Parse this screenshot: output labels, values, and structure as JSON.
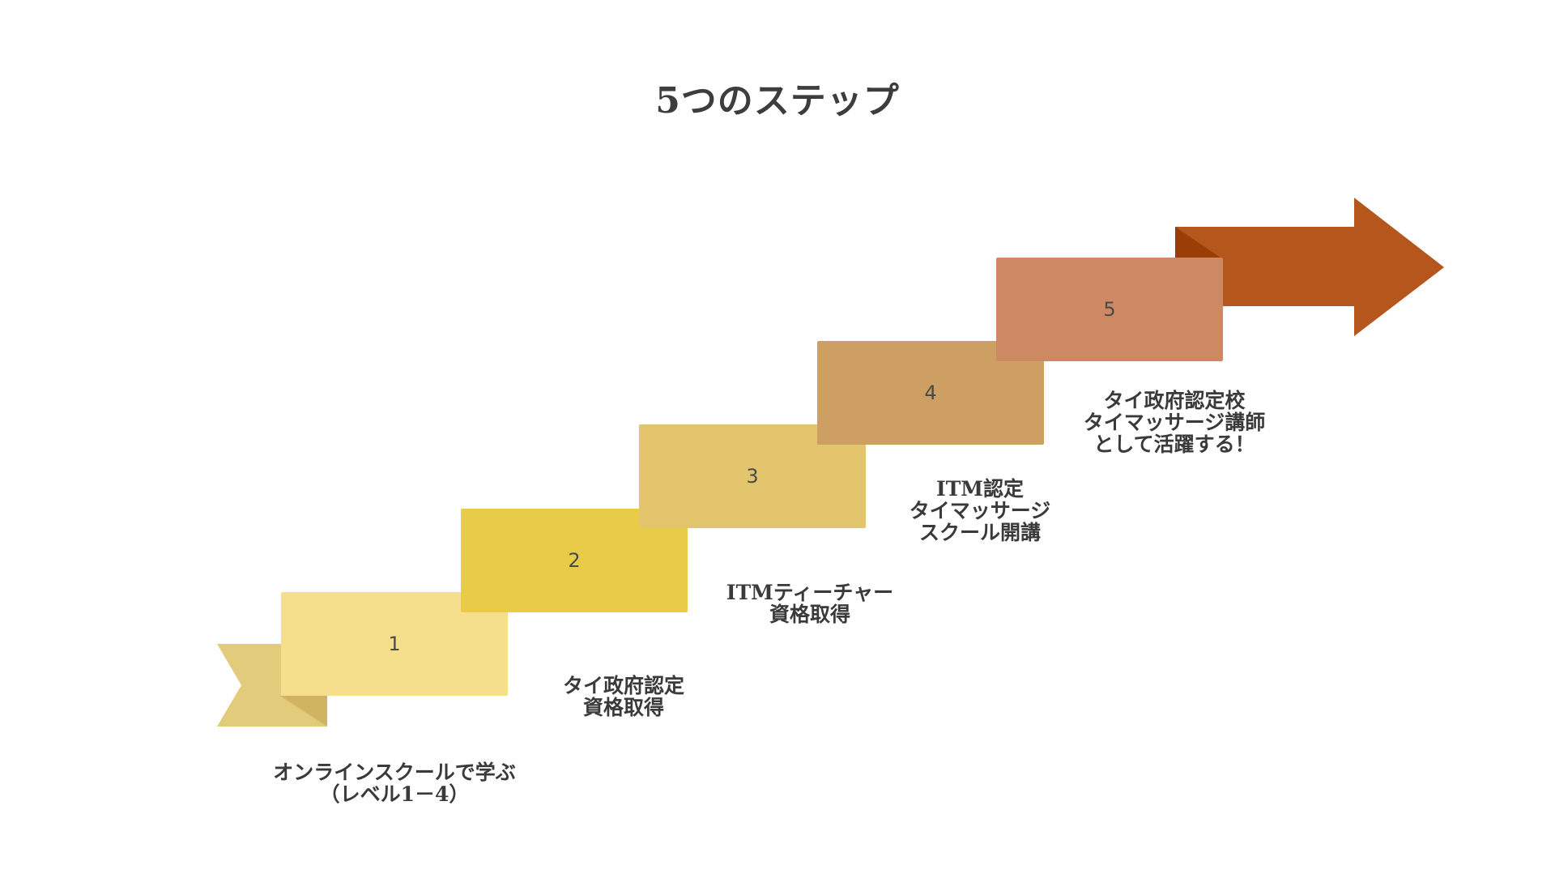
{
  "title": "5つのステップ",
  "colors": {
    "tail": "#e3cb7c",
    "tail_shadow": "#d6b96b",
    "step1": "#f6df8c",
    "fold1": "#d0b461",
    "step2": "#e8cb46",
    "fold2": "#d6ad00",
    "step3": "#e3c56d",
    "fold3": "#c8a352",
    "step4": "#cd9f63",
    "fold4": "#c67d52",
    "step5": "#cd8963",
    "fold5": "#a33e00",
    "arrow": "#b5561d",
    "arrow_dark": "#9a3e08"
  },
  "steps": [
    {
      "number": "1",
      "label_lines": [
        "オンラインスクールで学ぶ",
        "（レベル1－4）"
      ]
    },
    {
      "number": "2",
      "label_lines": [
        "タイ政府認定",
        "資格取得"
      ]
    },
    {
      "number": "3",
      "label_lines": [
        "ITMティーチャー",
        "資格取得"
      ]
    },
    {
      "number": "4",
      "label_lines": [
        "ITM認定",
        "タイマッサージ",
        "スクール開講"
      ]
    },
    {
      "number": "5",
      "label_lines": [
        "タイ政府認定校",
        "タイマッサージ講師",
        "として活躍する！"
      ]
    }
  ]
}
